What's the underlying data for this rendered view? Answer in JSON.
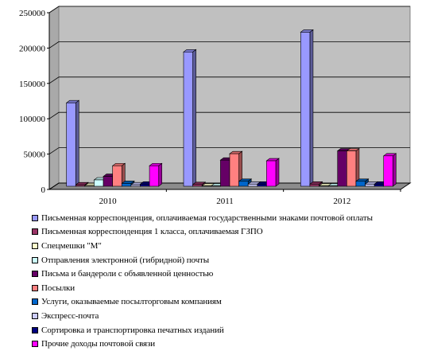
{
  "chart_data": {
    "type": "bar",
    "categories": [
      "2010",
      "2011",
      "2012"
    ],
    "ylim": [
      0,
      250000
    ],
    "yticks": [
      "0",
      "50000",
      "100000",
      "150000",
      "200000",
      "250000"
    ],
    "grid": true,
    "legend_position": "bottom",
    "series": [
      {
        "name": "Письменная корреспонденция, оплачиваемая государственными знаками почтовой оплаты",
        "color": "#9999ff",
        "values": [
          118000,
          190000,
          218000
        ]
      },
      {
        "name": "Письменная корреспонденция 1 класса, оплачиваемая ГЗПО",
        "color": "#993366",
        "values": [
          2000,
          2500,
          3000
        ]
      },
      {
        "name": "Спецмешки \"М\"",
        "color": "#ffffcc",
        "values": [
          1000,
          500,
          500
        ]
      },
      {
        "name": "Отправления электронной (гибридной) почты",
        "color": "#ccffff",
        "values": [
          9000,
          500,
          500
        ]
      },
      {
        "name": "Письма и бандероли с объявленной ценностью",
        "color": "#660066",
        "values": [
          14000,
          37000,
          50000
        ]
      },
      {
        "name": "Посылки",
        "color": "#ff8080",
        "values": [
          29000,
          46000,
          50000
        ]
      },
      {
        "name": "Услуги, оказываемые посылторговым компаниям",
        "color": "#0066cc",
        "values": [
          4000,
          7000,
          7000
        ]
      },
      {
        "name": "Экспресс-почта",
        "color": "#ccccff",
        "values": [
          2000,
          3000,
          3000
        ]
      },
      {
        "name": "Сортировка и транспортировка печатных изданий",
        "color": "#000080",
        "values": [
          3000,
          3000,
          3000
        ]
      },
      {
        "name": "Прочие доходы почтовой связи",
        "color": "#ff00ff",
        "values": [
          29000,
          36000,
          43000
        ]
      }
    ]
  }
}
